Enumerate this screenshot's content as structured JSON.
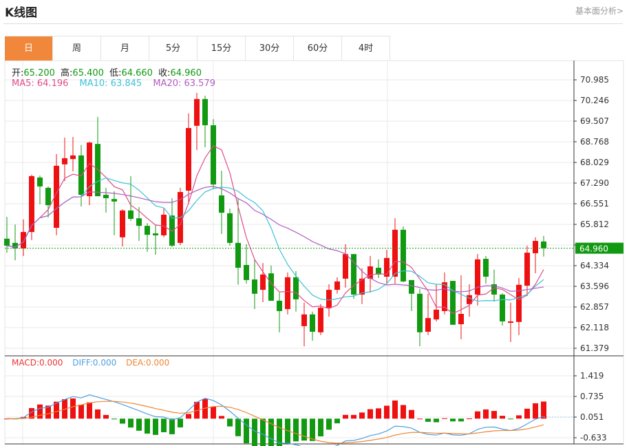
{
  "header": {
    "title": "K线图",
    "link": "基本面分析>"
  },
  "tabs": [
    {
      "label": "日",
      "active": true
    },
    {
      "label": "周"
    },
    {
      "label": "月"
    },
    {
      "label": "5分"
    },
    {
      "label": "15分"
    },
    {
      "label": "30分"
    },
    {
      "label": "60分"
    },
    {
      "label": "4时"
    }
  ],
  "legend": {
    "open_label": "开:",
    "open": "65.200",
    "high_label": "高:",
    "high": "65.400",
    "low_label": "低:",
    "low": "64.660",
    "close_label": "收:",
    "close": "64.960",
    "ma5": "MA5: 64.196",
    "ma10": "MA10: 63.845",
    "ma20": "MA20: 63.579"
  },
  "macd_legend": {
    "macd": "MACD:0.000",
    "diff": "DIFF:0.000",
    "dea": "DEA:0.000"
  },
  "colors": {
    "up": "#ee1111",
    "down": "#119911",
    "accent": "#f0873a",
    "ma5": "#e04a8a",
    "ma10": "#3cc2d6",
    "ma20": "#b05cc2",
    "diff": "#4d9fe0",
    "dea": "#ef8533",
    "price_badge": "#119911"
  },
  "chart_data": {
    "type": "candlestick",
    "ohlc_fields": [
      "open",
      "close",
      "low",
      "high"
    ],
    "candles": [
      [
        65.3,
        65.05,
        64.8,
        66.08
      ],
      [
        65.15,
        64.95,
        64.53,
        65.81
      ],
      [
        64.95,
        65.54,
        64.68,
        65.99
      ],
      [
        65.54,
        67.54,
        65.25,
        67.59
      ],
      [
        67.49,
        67.17,
        66.53,
        67.56
      ],
      [
        67.12,
        66.5,
        66.06,
        67.17
      ],
      [
        65.69,
        67.91,
        65.42,
        68.33
      ],
      [
        67.96,
        68.18,
        67.36,
        68.92
      ],
      [
        68.15,
        68.28,
        67.71,
        68.94
      ],
      [
        68.28,
        66.87,
        66.45,
        68.65
      ],
      [
        66.82,
        68.74,
        66.5,
        68.77
      ],
      [
        68.69,
        66.82,
        66.82,
        69.66
      ],
      [
        66.87,
        66.75,
        66.23,
        67.12
      ],
      [
        66.72,
        66.63,
        65.42,
        67.0
      ],
      [
        65.35,
        66.31,
        65.02,
        66.35
      ],
      [
        66.31,
        66.01,
        65.94,
        67.54
      ],
      [
        66.03,
        65.76,
        65.22,
        66.43
      ],
      [
        65.76,
        65.44,
        64.83,
        65.86
      ],
      [
        65.49,
        65.42,
        64.73,
        65.79
      ],
      [
        65.42,
        66.16,
        65.35,
        66.38
      ],
      [
        66.13,
        65.05,
        65.0,
        66.75
      ],
      [
        65.15,
        66.97,
        65.07,
        67.12
      ],
      [
        67.02,
        69.26,
        66.53,
        69.78
      ],
      [
        69.34,
        70.3,
        68.47,
        70.52
      ],
      [
        70.3,
        69.36,
        68.57,
        70.42
      ],
      [
        69.36,
        67.24,
        67.07,
        69.58
      ],
      [
        66.85,
        66.23,
        65.47,
        67.73
      ],
      [
        66.21,
        65.15,
        65.05,
        66.38
      ],
      [
        65.15,
        64.26,
        63.65,
        66.75
      ],
      [
        64.36,
        63.82,
        63.69,
        65.1
      ],
      [
        63.84,
        63.33,
        62.78,
        64.58
      ],
      [
        63.47,
        64.02,
        63.03,
        64.43
      ],
      [
        64.06,
        63.08,
        63.08,
        64.34
      ],
      [
        63.08,
        62.71,
        61.95,
        63.37
      ],
      [
        62.78,
        63.92,
        62.59,
        64.09
      ],
      [
        63.92,
        63.13,
        62.69,
        64.14
      ],
      [
        62.17,
        62.59,
        61.45,
        63.01
      ],
      [
        62.59,
        61.97,
        61.65,
        62.69
      ],
      [
        61.95,
        62.83,
        61.85,
        62.96
      ],
      [
        62.83,
        63.47,
        62.51,
        63.67
      ],
      [
        63.47,
        63.77,
        63.33,
        63.92
      ],
      [
        63.87,
        64.75,
        63.55,
        65.1
      ],
      [
        64.75,
        63.3,
        63.15,
        64.75
      ],
      [
        63.3,
        63.87,
        62.96,
        64.24
      ],
      [
        63.87,
        64.31,
        63.37,
        64.68
      ],
      [
        64.26,
        64.02,
        63.89,
        64.56
      ],
      [
        63.94,
        64.61,
        63.69,
        64.9
      ],
      [
        63.94,
        65.62,
        63.69,
        66.03
      ],
      [
        65.62,
        63.77,
        63.74,
        65.74
      ],
      [
        63.82,
        63.33,
        62.71,
        63.82
      ],
      [
        63.33,
        61.95,
        61.45,
        63.5
      ],
      [
        61.97,
        62.46,
        61.85,
        63.33
      ],
      [
        62.41,
        62.76,
        62.34,
        63.67
      ],
      [
        62.71,
        63.74,
        62.59,
        64.09
      ],
      [
        63.79,
        62.22,
        62.22,
        63.79
      ],
      [
        62.24,
        62.61,
        61.7,
        63.99
      ],
      [
        62.96,
        63.28,
        62.51,
        63.67
      ],
      [
        63.3,
        64.56,
        62.91,
        64.75
      ],
      [
        64.58,
        63.94,
        63.69,
        64.68
      ],
      [
        63.67,
        63.3,
        63.05,
        64.19
      ],
      [
        63.3,
        62.34,
        62.19,
        63.35
      ],
      [
        62.29,
        62.34,
        61.6,
        63.01
      ],
      [
        62.32,
        63.65,
        61.85,
        63.89
      ],
      [
        63.62,
        64.8,
        63.25,
        65.05
      ],
      [
        64.78,
        65.22,
        64.06,
        65.35
      ],
      [
        65.2,
        64.96,
        64.66,
        65.4
      ]
    ],
    "moving_averages": [
      "MA5",
      "MA10",
      "MA20"
    ],
    "price_ticks": [
      "70.985",
      "70.246",
      "69.507",
      "68.768",
      "68.029",
      "67.290",
      "66.551",
      "65.812",
      "",
      "64.334",
      "63.596",
      "62.857",
      "62.118",
      "61.379"
    ],
    "ylim": [
      61.379,
      70.985
    ],
    "current_price": "64.960",
    "macd": {
      "ticks": [
        "1.419",
        "0.735",
        "0.051",
        "-0.633"
      ],
      "ylim": [
        -0.633,
        1.419
      ]
    },
    "grid": true
  }
}
